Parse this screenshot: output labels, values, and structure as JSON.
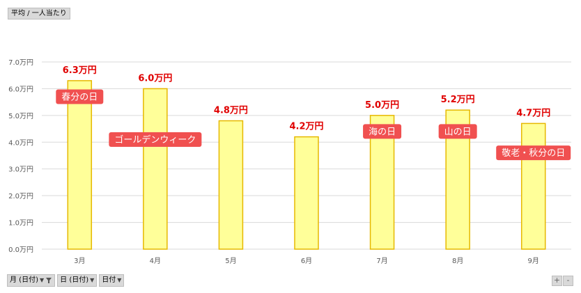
{
  "pivot_value_label": "平均 / 一人当たり",
  "field_buttons": [
    {
      "label": "月 (日付)",
      "icon": "filter-funnel-icon"
    },
    {
      "label": "日 (日付)",
      "icon": "dropdown-arrow-icon"
    },
    {
      "label": "日付",
      "icon": "dropdown-arrow-icon"
    }
  ],
  "zoom": {
    "plus": "+",
    "minus": "-"
  },
  "chart_data": {
    "type": "bar",
    "categories": [
      "3月",
      "4月",
      "5月",
      "6月",
      "7月",
      "8月",
      "9月"
    ],
    "values": [
      6.3,
      6.0,
      4.8,
      4.2,
      5.0,
      5.2,
      4.7
    ],
    "data_labels": [
      "6.3万円",
      "6.0万円",
      "4.8万円",
      "4.2万円",
      "5.0万円",
      "5.2万円",
      "4.7万円"
    ],
    "yticks": [
      "0.0万円",
      "1.0万円",
      "2.0万円",
      "3.0万円",
      "4.0万円",
      "5.0万円",
      "6.0万円",
      "7.0万円"
    ],
    "ylim": [
      0,
      7
    ],
    "grid": true,
    "bar_fill": "#ffff99",
    "bar_stroke": "#e6b800",
    "label_color": "#e00000",
    "annotations": [
      {
        "text": "春分の日",
        "category": "3月",
        "value": 5.7
      },
      {
        "text": "ゴールデンウィーク",
        "category": "4月",
        "value": 4.1
      },
      {
        "text": "海の日",
        "category": "7月",
        "value": 4.4
      },
      {
        "text": "山の日",
        "category": "8月",
        "value": 4.4
      },
      {
        "text": "敬老・秋分の日",
        "category": "9月",
        "value": 3.6
      }
    ],
    "annotation_color": "#f05050"
  }
}
